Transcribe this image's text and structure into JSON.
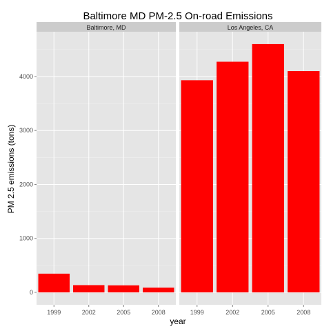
{
  "chart_data": {
    "type": "bar",
    "title": "Baltimore MD PM-2.5 On-road Emissions",
    "xlabel": "year",
    "ylabel": "PM 2.5 emissions (tons)",
    "categories": [
      "1999",
      "2002",
      "2005",
      "2008"
    ],
    "y_ticks": [
      0,
      1000,
      2000,
      3000,
      4000
    ],
    "y_tick_labels": [
      "0",
      "1000",
      "2000",
      "3000",
      "4000"
    ],
    "ylim": [
      -230,
      4830
    ],
    "grid": true,
    "legend": "none",
    "bar_color": "#ff0000",
    "panel_background": "#e5e5e5",
    "strip_background": "#cccccc",
    "facets": [
      {
        "label": "Baltimore, MD",
        "values": [
          346.8,
          134.3,
          130.4,
          88.3
        ]
      },
      {
        "label": "Los Angeles, CA",
        "values": [
          3931,
          4274,
          4601,
          4101
        ]
      }
    ]
  }
}
